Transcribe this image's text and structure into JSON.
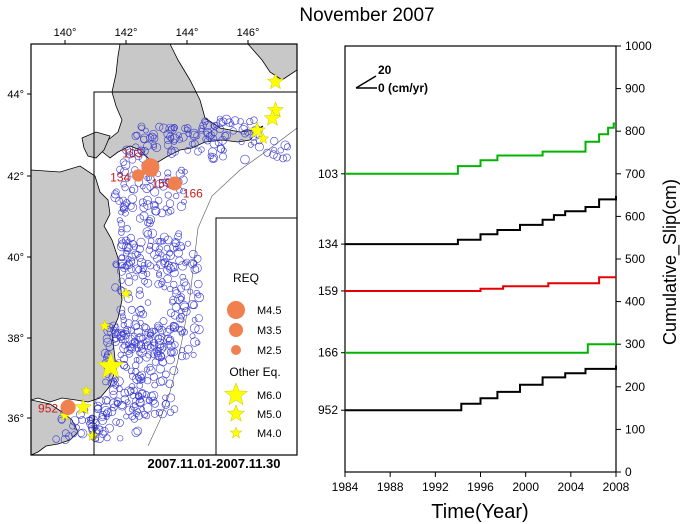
{
  "title": "November 2007",
  "map": {
    "lon_ticks": [
      "140°",
      "142°",
      "144°",
      "146°"
    ],
    "lat_ticks": [
      "44°",
      "42°",
      "40°",
      "38°",
      "36°"
    ],
    "date_range": "2007.11.01-2007.11.30",
    "req_events": [
      {
        "id": "103",
        "lon": 142.8,
        "lat": 42.2,
        "mag": 4.5
      },
      {
        "id": "134",
        "lon": 142.4,
        "lat": 42.0,
        "mag": 3.5
      },
      {
        "id": "159",
        "lon": 142.9,
        "lat": 42.05,
        "mag": 2.5
      },
      {
        "id": "166",
        "lon": 143.6,
        "lat": 41.8,
        "mag": 3.8
      },
      {
        "id": "952",
        "lon": 140.1,
        "lat": 36.3,
        "mag": 4.0
      }
    ],
    "other_events": [
      {
        "lon": 146.9,
        "lat": 44.3,
        "mag": 5.0
      },
      {
        "lon": 146.9,
        "lat": 43.6,
        "mag": 5.0
      },
      {
        "lon": 146.8,
        "lat": 43.4,
        "mag": 5.0
      },
      {
        "lon": 146.3,
        "lat": 43.1,
        "mag": 5.0
      },
      {
        "lon": 146.5,
        "lat": 42.9,
        "mag": 4.5
      },
      {
        "lon": 142.0,
        "lat": 39.1,
        "mag": 4.5
      },
      {
        "lon": 141.3,
        "lat": 38.3,
        "mag": 4.5
      },
      {
        "lon": 141.5,
        "lat": 37.3,
        "mag": 6.0
      },
      {
        "lon": 140.7,
        "lat": 36.7,
        "mag": 4.5
      },
      {
        "lon": 140.6,
        "lat": 36.3,
        "mag": 5.0
      },
      {
        "lon": 140.0,
        "lat": 36.1,
        "mag": 4.5
      },
      {
        "lon": 140.9,
        "lat": 35.6,
        "mag": 4.5
      }
    ],
    "legend": {
      "req_title": "REQ",
      "req_items": [
        {
          "label": "M4.5"
        },
        {
          "label": "M3.5"
        },
        {
          "label": "M2.5"
        }
      ],
      "other_title": "Other Eq.",
      "other_items": [
        {
          "label": "M6.0"
        },
        {
          "label": "M5.0"
        },
        {
          "label": "M4.0"
        }
      ]
    },
    "colors": {
      "land": "#c8c8c8",
      "seismicity": "#3a3ad0",
      "req": "#f08050",
      "req_label": "#c81e1e",
      "other": "#ffff00"
    }
  },
  "chart_data": {
    "type": "line",
    "xlabel": "Time(Year)",
    "ylabel": "Cumulative_Slip(cm)",
    "x_ticks": [
      1984,
      1988,
      1992,
      1996,
      2000,
      2004,
      2008
    ],
    "xlim": [
      1984,
      2008
    ],
    "ylim": [
      0,
      1000
    ],
    "y_ticks": [
      0,
      100,
      200,
      300,
      400,
      500,
      600,
      700,
      800,
      900,
      1000
    ],
    "velocity_scale": {
      "top": "20",
      "bottom": "0 (cm/yr)"
    },
    "series": [
      {
        "name": "103",
        "color": "#00b400",
        "baseline": 700,
        "points": [
          [
            1984,
            700
          ],
          [
            1994,
            700
          ],
          [
            1994,
            718
          ],
          [
            1996,
            718
          ],
          [
            1996,
            732
          ],
          [
            1997.5,
            732
          ],
          [
            1997.5,
            743
          ],
          [
            2001.5,
            743
          ],
          [
            2001.5,
            752
          ],
          [
            2005.3,
            752
          ],
          [
            2005.3,
            775
          ],
          [
            2006.5,
            775
          ],
          [
            2006.5,
            793
          ],
          [
            2007.3,
            793
          ],
          [
            2007.3,
            808
          ],
          [
            2007.8,
            808
          ],
          [
            2007.8,
            818
          ],
          [
            2008,
            818
          ]
        ]
      },
      {
        "name": "134",
        "color": "#000000",
        "baseline": 535,
        "points": [
          [
            1984,
            535
          ],
          [
            1994,
            535
          ],
          [
            1994,
            545
          ],
          [
            1996,
            545
          ],
          [
            1996,
            558
          ],
          [
            1997.5,
            558
          ],
          [
            1997.5,
            568
          ],
          [
            1999.5,
            568
          ],
          [
            1999.5,
            580
          ],
          [
            2001.5,
            580
          ],
          [
            2001.5,
            592
          ],
          [
            2002.5,
            592
          ],
          [
            2002.5,
            603
          ],
          [
            2003.5,
            603
          ],
          [
            2003.5,
            612
          ],
          [
            2005.3,
            612
          ],
          [
            2005.3,
            622
          ],
          [
            2006.5,
            622
          ],
          [
            2006.5,
            640
          ],
          [
            2008,
            640
          ],
          [
            2008,
            648
          ]
        ]
      },
      {
        "name": "159",
        "color": "#e60000",
        "baseline": 425,
        "points": [
          [
            1984,
            425
          ],
          [
            1996,
            425
          ],
          [
            1996,
            430
          ],
          [
            1998,
            430
          ],
          [
            1998,
            436
          ],
          [
            2002,
            436
          ],
          [
            2002,
            443
          ],
          [
            2006.5,
            443
          ],
          [
            2006.5,
            457
          ],
          [
            2008,
            457
          ]
        ]
      },
      {
        "name": "166",
        "color": "#00b400",
        "baseline": 280,
        "points": [
          [
            1984,
            280
          ],
          [
            2005.5,
            280
          ],
          [
            2005.5,
            300
          ],
          [
            2008,
            300
          ],
          [
            2008,
            307
          ]
        ]
      },
      {
        "name": "952",
        "color": "#000000",
        "baseline": 145,
        "points": [
          [
            1984,
            145
          ],
          [
            1994.3,
            145
          ],
          [
            1994.3,
            160
          ],
          [
            1996,
            160
          ],
          [
            1996,
            173
          ],
          [
            1997.5,
            173
          ],
          [
            1997.5,
            188
          ],
          [
            1999.5,
            188
          ],
          [
            1999.5,
            205
          ],
          [
            2001.5,
            205
          ],
          [
            2001.5,
            222
          ],
          [
            2003.5,
            222
          ],
          [
            2003.5,
            232
          ],
          [
            2005.3,
            232
          ],
          [
            2005.3,
            242
          ],
          [
            2008,
            242
          ],
          [
            2008,
            250
          ]
        ]
      }
    ]
  }
}
